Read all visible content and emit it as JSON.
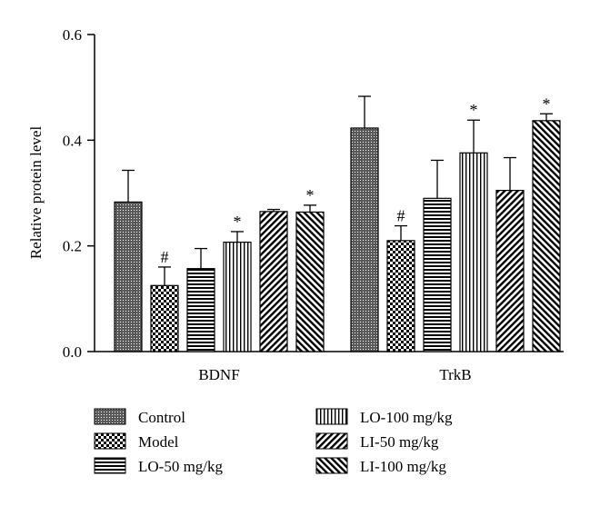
{
  "chart_data": {
    "type": "bar",
    "title": "",
    "xlabel": "",
    "ylabel": "Relative protein level",
    "ylim": [
      0,
      0.6
    ],
    "yticks": [
      "0.0",
      "0.2",
      "0.4",
      "0.6"
    ],
    "categories": [
      "BDNF",
      "TrkB"
    ],
    "series": [
      {
        "name": "Control",
        "pattern": "dense-dots",
        "values": [
          0.283,
          0.423
        ],
        "errors": [
          0.06,
          0.06
        ],
        "annotations": [
          "",
          ""
        ]
      },
      {
        "name": "Model",
        "pattern": "checker",
        "values": [
          0.125,
          0.21
        ],
        "errors": [
          0.035,
          0.028
        ],
        "annotations": [
          "#",
          "#"
        ]
      },
      {
        "name": "LO-50 mg/kg",
        "pattern": "horizontal-lines",
        "values": [
          0.157,
          0.29
        ],
        "errors": [
          0.038,
          0.072
        ],
        "annotations": [
          "",
          ""
        ]
      },
      {
        "name": "LO-100 mg/kg",
        "pattern": "vertical-lines",
        "values": [
          0.207,
          0.376
        ],
        "errors": [
          0.02,
          0.062
        ],
        "annotations": [
          "*",
          "*"
        ]
      },
      {
        "name": "LI-50 mg/kg",
        "pattern": "diagonal-up",
        "values": [
          0.265,
          0.305
        ],
        "errors": [
          0.004,
          0.062
        ],
        "annotations": [
          "",
          ""
        ]
      },
      {
        "name": "LI-100 mg/kg",
        "pattern": "diagonal-down",
        "values": [
          0.264,
          0.437
        ],
        "errors": [
          0.013,
          0.013
        ],
        "annotations": [
          "*",
          "*"
        ]
      }
    ],
    "legend_placement": "bottom",
    "grid": false
  }
}
